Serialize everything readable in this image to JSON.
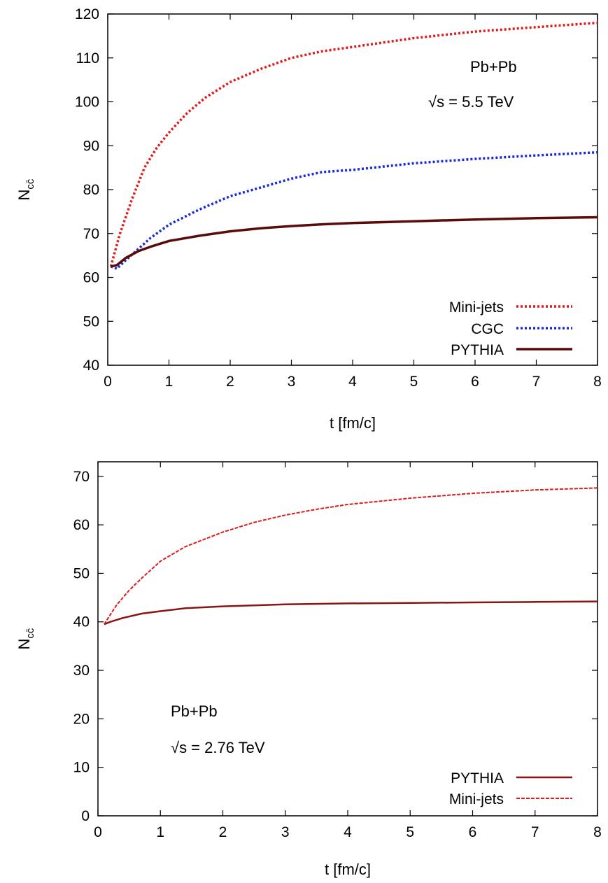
{
  "chart_data": [
    {
      "type": "line",
      "xlabel": "t [fm/c]",
      "ylabel": "N_cc̄",
      "xlim": [
        0,
        8
      ],
      "ylim": [
        40,
        120
      ],
      "xticks": [
        "0",
        "1",
        "2",
        "3",
        "4",
        "5",
        "6",
        "7",
        "8"
      ],
      "yticks": [
        "40",
        "50",
        "60",
        "70",
        "80",
        "90",
        "100",
        "110",
        "120"
      ],
      "annotations": [
        "Pb+Pb",
        "√s = 5.5 TeV"
      ],
      "legend_position": "bottom-right",
      "grid": false,
      "series": [
        {
          "name": "Mini-jets",
          "color": "#dd1c1c",
          "style": "dotted",
          "x": [
            0.05,
            0.2,
            0.4,
            0.6,
            0.8,
            1.0,
            1.3,
            1.6,
            2.0,
            2.5,
            3.0,
            3.5,
            4.0,
            5.0,
            6.0,
            7.0,
            8.0
          ],
          "y": [
            62.5,
            70,
            78,
            85,
            89.5,
            93,
            97.5,
            101,
            104.5,
            107.5,
            110,
            111.5,
            112.5,
            114.5,
            116,
            117,
            118
          ]
        },
        {
          "name": "CGC",
          "color": "#1a2bd6",
          "style": "dotted",
          "x": [
            0.05,
            0.15,
            0.3,
            0.5,
            0.7,
            1.0,
            1.5,
            2.0,
            2.5,
            3.0,
            3.5,
            4.0,
            5.0,
            6.0,
            7.0,
            8.0
          ],
          "y": [
            62.5,
            62,
            64,
            66.5,
            69,
            72,
            75.5,
            78.5,
            80.5,
            82.5,
            84,
            84.5,
            86,
            87,
            87.8,
            88.5
          ]
        },
        {
          "name": "PYTHIA",
          "color": "#5a0c0c",
          "style": "solid",
          "x": [
            0.05,
            0.15,
            0.3,
            0.5,
            0.7,
            1.0,
            1.5,
            2.0,
            2.5,
            3.0,
            3.5,
            4.0,
            5.0,
            6.0,
            7.0,
            8.0
          ],
          "y": [
            62.5,
            62.8,
            64.5,
            66,
            67,
            68.3,
            69.5,
            70.5,
            71.2,
            71.7,
            72.1,
            72.4,
            72.8,
            73.2,
            73.5,
            73.7
          ]
        }
      ]
    },
    {
      "type": "line",
      "xlabel": "t [fm/c]",
      "ylabel": "N_cc̄",
      "xlim": [
        0,
        8
      ],
      "ylim": [
        0,
        73
      ],
      "xticks": [
        "0",
        "1",
        "2",
        "3",
        "4",
        "5",
        "6",
        "7",
        "8"
      ],
      "yticks": [
        "0",
        "10",
        "20",
        "30",
        "40",
        "50",
        "60",
        "70"
      ],
      "annotations": [
        "Pb+Pb",
        "√s = 2.76 TeV"
      ],
      "legend_position": "bottom-right",
      "grid": false,
      "series": [
        {
          "name": "PYTHIA",
          "color": "#8b1414",
          "style": "solid",
          "x": [
            0.1,
            0.2,
            0.4,
            0.7,
            1.0,
            1.4,
            2.0,
            3.0,
            4.0,
            5.0,
            6.0,
            7.0,
            8.0
          ],
          "y": [
            39.5,
            40,
            40.8,
            41.7,
            42.2,
            42.8,
            43.2,
            43.6,
            43.8,
            43.9,
            44,
            44.1,
            44.2
          ]
        },
        {
          "name": "Mini-jets",
          "color": "#dd1c1c",
          "style": "dashed",
          "x": [
            0.1,
            0.2,
            0.3,
            0.5,
            0.7,
            1.0,
            1.4,
            1.7,
            2.0,
            2.5,
            3.0,
            3.5,
            4.0,
            5.0,
            6.0,
            7.0,
            8.0
          ],
          "y": [
            39.5,
            41.5,
            43.5,
            46.5,
            49,
            52.5,
            55.5,
            57,
            58.5,
            60.5,
            62,
            63.2,
            64.2,
            65.5,
            66.5,
            67.2,
            67.6
          ]
        }
      ]
    }
  ]
}
